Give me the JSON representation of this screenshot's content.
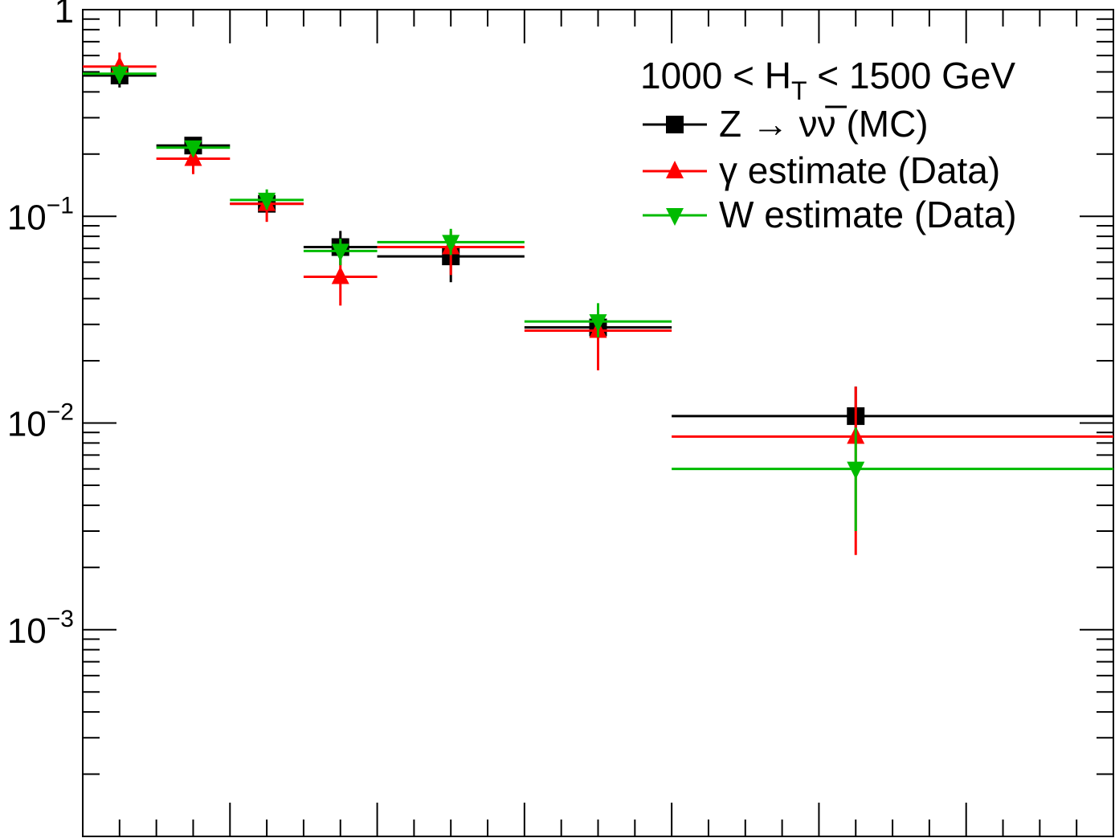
{
  "chart_data": {
    "type": "scatter",
    "y_scale": "log",
    "ylim": [
      0.0001,
      1
    ],
    "xlim": [
      0,
      1400
    ],
    "y_tick_labels": [
      {
        "value": 1,
        "label": "1"
      },
      {
        "value": 0.1,
        "base": "10",
        "exp": "−1"
      },
      {
        "value": 0.01,
        "base": "10",
        "exp": "−2"
      },
      {
        "value": 0.001,
        "base": "10",
        "exp": "−3"
      }
    ],
    "legend": {
      "title_main": "1000 < H",
      "title_sub": "T",
      "title_rest": " < 1500 GeV",
      "placement": "top-right"
    },
    "series": [
      {
        "name": "Z → νν̅ (MC)",
        "color": "#000000",
        "marker": "square",
        "points": [
          {
            "x": 50,
            "xlo": 0,
            "xhi": 100,
            "y": 0.48,
            "ylo": 0.42,
            "yhi": 0.55
          },
          {
            "x": 150,
            "xlo": 100,
            "xhi": 200,
            "y": 0.22,
            "ylo": 0.2,
            "yhi": 0.235
          },
          {
            "x": 250,
            "xlo": 200,
            "xhi": 300,
            "y": 0.115,
            "ylo": 0.105,
            "yhi": 0.125
          },
          {
            "x": 350,
            "xlo": 300,
            "xhi": 400,
            "y": 0.071,
            "ylo": 0.058,
            "yhi": 0.085
          },
          {
            "x": 500,
            "xlo": 400,
            "xhi": 600,
            "y": 0.064,
            "ylo": 0.048,
            "yhi": 0.075
          },
          {
            "x": 700,
            "xlo": 600,
            "xhi": 800,
            "y": 0.029,
            "ylo": 0.025,
            "yhi": 0.033
          },
          {
            "x": 1050,
            "xlo": 800,
            "xhi": 1400,
            "y": 0.0108,
            "ylo": 0.0085,
            "yhi": 0.015
          }
        ]
      },
      {
        "name": "γ estimate (Data)",
        "color": "#ff0000",
        "marker": "triangle-up",
        "points": [
          {
            "x": 50,
            "xlo": 0,
            "xhi": 100,
            "y": 0.53,
            "ylo": 0.45,
            "yhi": 0.62
          },
          {
            "x": 150,
            "xlo": 100,
            "xhi": 200,
            "y": 0.19,
            "ylo": 0.16,
            "yhi": 0.21
          },
          {
            "x": 250,
            "xlo": 200,
            "xhi": 300,
            "y": 0.115,
            "ylo": 0.094,
            "yhi": 0.13
          },
          {
            "x": 350,
            "xlo": 300,
            "xhi": 400,
            "y": 0.051,
            "ylo": 0.037,
            "yhi": 0.062
          },
          {
            "x": 500,
            "xlo": 400,
            "xhi": 600,
            "y": 0.071,
            "ylo": 0.052,
            "yhi": 0.085
          },
          {
            "x": 700,
            "xlo": 600,
            "xhi": 800,
            "y": 0.028,
            "ylo": 0.018,
            "yhi": 0.035
          },
          {
            "x": 1050,
            "xlo": 800,
            "xhi": 1400,
            "y": 0.0086,
            "ylo": 0.0023,
            "yhi": 0.015
          }
        ]
      },
      {
        "name": "W estimate (Data)",
        "color": "#00bb00",
        "marker": "triangle-down",
        "points": [
          {
            "x": 50,
            "xlo": 0,
            "xhi": 100,
            "y": 0.49,
            "ylo": 0.44,
            "yhi": 0.54
          },
          {
            "x": 150,
            "xlo": 100,
            "xhi": 200,
            "y": 0.215,
            "ylo": 0.2,
            "yhi": 0.23
          },
          {
            "x": 250,
            "xlo": 200,
            "xhi": 300,
            "y": 0.12,
            "ylo": 0.108,
            "yhi": 0.135
          },
          {
            "x": 350,
            "xlo": 300,
            "xhi": 400,
            "y": 0.068,
            "ylo": 0.058,
            "yhi": 0.078
          },
          {
            "x": 500,
            "xlo": 400,
            "xhi": 600,
            "y": 0.075,
            "ylo": 0.065,
            "yhi": 0.087
          },
          {
            "x": 700,
            "xlo": 600,
            "xhi": 800,
            "y": 0.031,
            "ylo": 0.026,
            "yhi": 0.038
          },
          {
            "x": 1050,
            "xlo": 800,
            "xhi": 1400,
            "y": 0.006,
            "ylo": 0.003,
            "yhi": 0.0095
          }
        ]
      }
    ],
    "colors": {
      "z": "#000000",
      "gamma": "#ff0000",
      "w": "#00bb00"
    }
  }
}
